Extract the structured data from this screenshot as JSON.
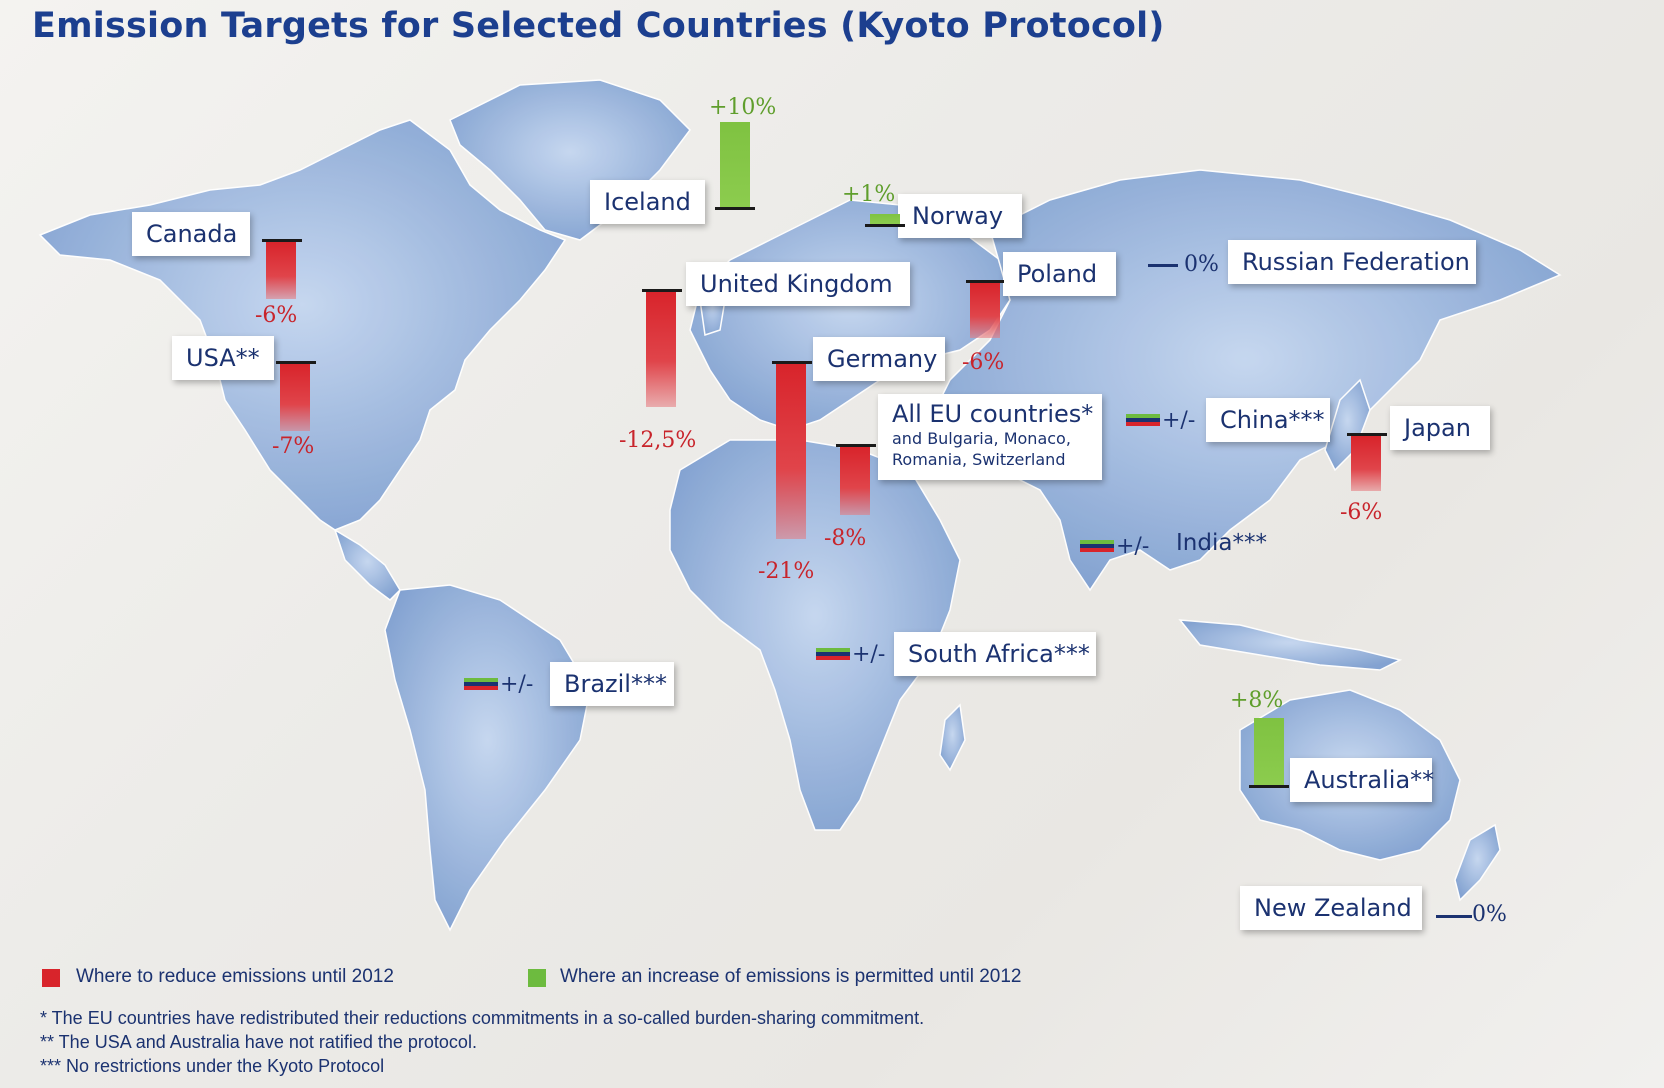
{
  "title": "Emission Targets for Selected Countries (Kyoto Protocol)",
  "countries": {
    "canada": {
      "name": "Canada",
      "target": "-6%"
    },
    "usa": {
      "name": "USA**",
      "target": "-7%"
    },
    "iceland": {
      "name": "Iceland",
      "target": "+10%"
    },
    "uk": {
      "name": "United Kingdom",
      "target": "-12,5%"
    },
    "norway": {
      "name": "Norway",
      "target": "+1%"
    },
    "germany": {
      "name": "Germany",
      "target": "-21%"
    },
    "poland": {
      "name": "Poland",
      "target": "-6%"
    },
    "russia": {
      "name": "Russian Federation",
      "target": "0%"
    },
    "eu": {
      "name": "All EU countries*",
      "sub1": "and Bulgaria, Monaco,",
      "sub2": "Romania, Switzerland",
      "target": "-8%"
    },
    "china": {
      "name": "China***",
      "target": "+/-"
    },
    "japan": {
      "name": "Japan",
      "target": "-6%"
    },
    "india": {
      "name": "India***",
      "target": "+/-"
    },
    "brazil": {
      "name": "Brazil***",
      "target": "+/-"
    },
    "south_africa": {
      "name": "South Africa***",
      "target": "+/-"
    },
    "australia": {
      "name": "Australia**",
      "target": "+8%"
    },
    "new_zealand": {
      "name": "New Zealand",
      "target": "0%"
    }
  },
  "legend": {
    "reduce": "Where to reduce emissions until 2012",
    "increase": "Where an increase of emissions is permitted until 2012",
    "colors": {
      "reduce": "#d8242b",
      "increase": "#6dbb3f",
      "no_restriction": [
        "#6dbb3f",
        "#1b3270",
        "#d8242b"
      ]
    }
  },
  "footnotes": [
    "* The EU countries have redistributed their reductions commitments in a so-called burden-sharing commitment.",
    "** The USA and Australia have not ratified the protocol.",
    "*** No restrictions under the Kyoto Protocol"
  ]
}
